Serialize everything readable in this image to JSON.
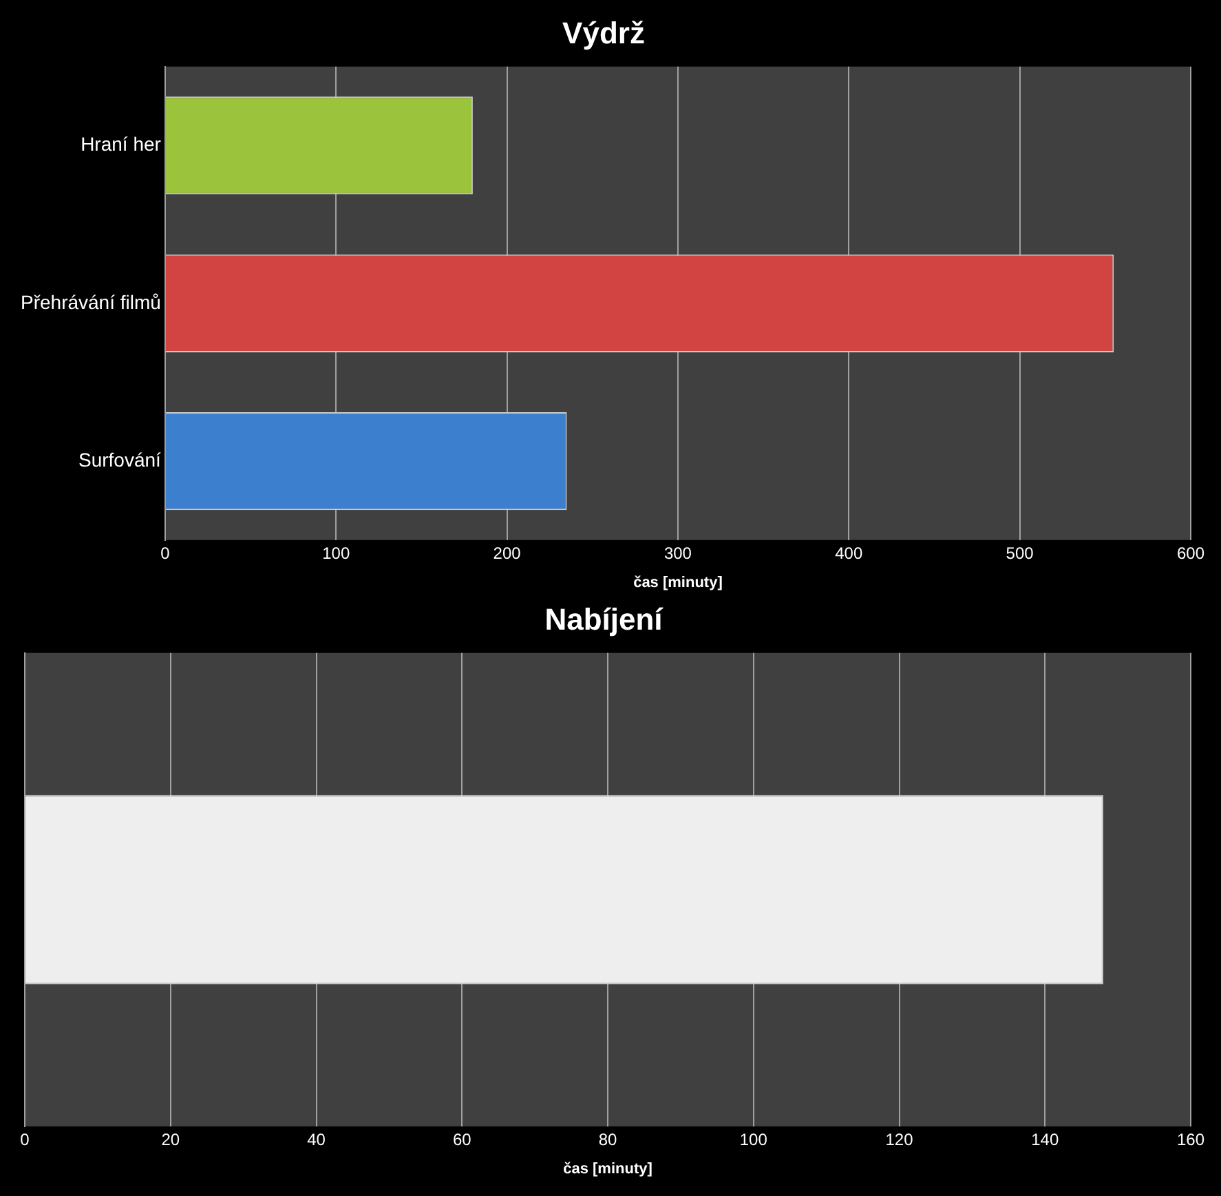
{
  "chart_data": [
    {
      "type": "bar",
      "orientation": "horizontal",
      "title": "Výdrž",
      "xlabel": "čas [minuty]",
      "categories": [
        "Hraní her",
        "Přehrávání filmů",
        "Surfování"
      ],
      "values": [
        180,
        555,
        235
      ],
      "colors": [
        "#9bc43c",
        "#d24442",
        "#3c7fcf"
      ],
      "xlim": [
        0,
        600
      ],
      "xticks": [
        0,
        100,
        200,
        300,
        400,
        500,
        600
      ],
      "grid": "x"
    },
    {
      "type": "bar",
      "orientation": "horizontal",
      "title": "Nabíjení",
      "xlabel": "čas [minuty]",
      "categories": [
        null
      ],
      "values": [
        148
      ],
      "colors": [
        "#eeeeee"
      ],
      "xlim": [
        0,
        160
      ],
      "xticks": [
        0,
        20,
        40,
        60,
        80,
        100,
        120,
        140,
        160
      ],
      "grid": "x"
    }
  ]
}
